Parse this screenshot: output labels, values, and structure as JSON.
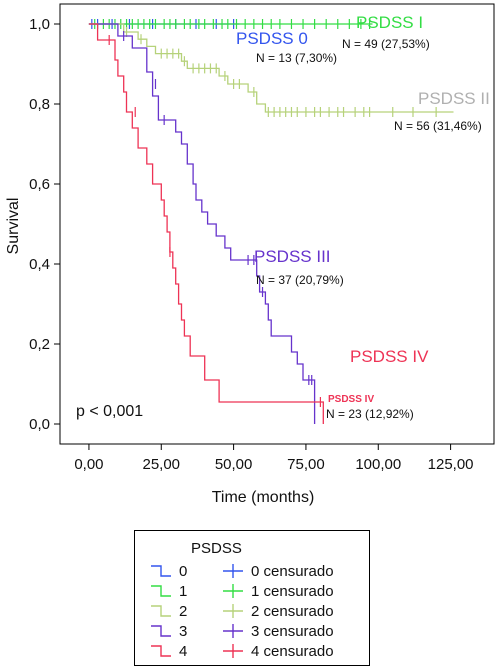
{
  "chart_data": {
    "type": "line",
    "xlabel": "Time (months)",
    "ylabel": "Survival",
    "xlim": [
      -10,
      140
    ],
    "ylim": [
      -0.05,
      1.05
    ],
    "xticks": [
      0,
      25,
      50,
      75,
      100,
      125
    ],
    "xtick_labels": [
      "0,00",
      "25,00",
      "50,00",
      "75,00",
      "100,00",
      "125,00"
    ],
    "yticks": [
      0,
      0.2,
      0.4,
      0.6,
      0.8,
      1.0
    ],
    "ytick_labels": [
      "0,0",
      "0,2",
      "0,4",
      "0,6",
      "0,8",
      "1,0"
    ],
    "p_value_text": "p < 0,001",
    "series": [
      {
        "name": "PSDSS 0",
        "color": "#3355ee",
        "steps": [
          [
            0,
            1.0
          ],
          [
            52,
            1.0
          ]
        ],
        "censored": [
          [
            1,
            1.0
          ],
          [
            3,
            1.0
          ],
          [
            8,
            1.0
          ],
          [
            14,
            1.0
          ],
          [
            22,
            1.0
          ],
          [
            30,
            1.0
          ],
          [
            37,
            1.0
          ],
          [
            44,
            1.0
          ],
          [
            50,
            1.0
          ]
        ]
      },
      {
        "name": "PSDSS I",
        "color": "#33dd44",
        "steps": [
          [
            0,
            1.0
          ],
          [
            98,
            1.0
          ]
        ],
        "censored": [
          [
            2,
            1.0
          ],
          [
            5,
            1.0
          ],
          [
            7,
            1.0
          ],
          [
            9,
            1.0
          ],
          [
            11,
            1.0
          ],
          [
            13,
            1.0
          ],
          [
            15,
            1.0
          ],
          [
            17,
            1.0
          ],
          [
            19,
            1.0
          ],
          [
            21,
            1.0
          ],
          [
            23,
            1.0
          ],
          [
            26,
            1.0
          ],
          [
            28,
            1.0
          ],
          [
            30,
            1.0
          ],
          [
            33,
            1.0
          ],
          [
            35,
            1.0
          ],
          [
            38,
            1.0
          ],
          [
            40,
            1.0
          ],
          [
            43,
            1.0
          ],
          [
            46,
            1.0
          ],
          [
            48,
            1.0
          ],
          [
            51,
            1.0
          ],
          [
            54,
            1.0
          ],
          [
            57,
            1.0
          ],
          [
            60,
            1.0
          ],
          [
            63,
            1.0
          ],
          [
            66,
            1.0
          ],
          [
            70,
            1.0
          ],
          [
            74,
            1.0
          ],
          [
            78,
            1.0
          ],
          [
            82,
            1.0
          ],
          [
            86,
            1.0
          ],
          [
            90,
            1.0
          ],
          [
            94,
            1.0
          ],
          [
            97,
            1.0
          ]
        ]
      },
      {
        "name": "PSDSS II",
        "color": "#b6d27a",
        "steps": [
          [
            0,
            1.0
          ],
          [
            12,
            1.0
          ],
          [
            12,
            0.98
          ],
          [
            17,
            0.98
          ],
          [
            17,
            0.962
          ],
          [
            20,
            0.962
          ],
          [
            20,
            0.944
          ],
          [
            23,
            0.944
          ],
          [
            23,
            0.926
          ],
          [
            32,
            0.926
          ],
          [
            32,
            0.907
          ],
          [
            34,
            0.907
          ],
          [
            34,
            0.889
          ],
          [
            45,
            0.889
          ],
          [
            45,
            0.87
          ],
          [
            48,
            0.87
          ],
          [
            48,
            0.85
          ],
          [
            55,
            0.85
          ],
          [
            55,
            0.83
          ],
          [
            58,
            0.83
          ],
          [
            58,
            0.8
          ],
          [
            61,
            0.8
          ],
          [
            61,
            0.78
          ],
          [
            126,
            0.78
          ]
        ],
        "censored": [
          [
            13,
            0.98
          ],
          [
            18,
            0.962
          ],
          [
            25,
            0.926
          ],
          [
            27,
            0.926
          ],
          [
            29,
            0.926
          ],
          [
            31,
            0.926
          ],
          [
            33,
            0.907
          ],
          [
            36,
            0.889
          ],
          [
            38,
            0.889
          ],
          [
            40,
            0.889
          ],
          [
            42,
            0.889
          ],
          [
            44,
            0.889
          ],
          [
            47,
            0.87
          ],
          [
            50,
            0.85
          ],
          [
            52,
            0.85
          ],
          [
            57,
            0.83
          ],
          [
            62,
            0.78
          ],
          [
            64,
            0.78
          ],
          [
            66,
            0.78
          ],
          [
            68,
            0.78
          ],
          [
            70,
            0.78
          ],
          [
            72,
            0.78
          ],
          [
            75,
            0.78
          ],
          [
            78,
            0.78
          ],
          [
            80,
            0.78
          ],
          [
            83,
            0.78
          ],
          [
            86,
            0.78
          ],
          [
            88,
            0.78
          ],
          [
            92,
            0.78
          ],
          [
            95,
            0.78
          ],
          [
            97,
            0.78
          ],
          [
            105,
            0.78
          ],
          [
            112,
            0.78
          ],
          [
            120,
            0.78
          ]
        ]
      },
      {
        "name": "PSDSS III",
        "color": "#6633cc",
        "steps": [
          [
            0,
            1.0
          ],
          [
            10,
            1.0
          ],
          [
            10,
            0.97
          ],
          [
            15,
            0.97
          ],
          [
            15,
            0.94
          ],
          [
            20,
            0.94
          ],
          [
            20,
            0.88
          ],
          [
            22,
            0.88
          ],
          [
            22,
            0.82
          ],
          [
            24,
            0.82
          ],
          [
            24,
            0.76
          ],
          [
            30,
            0.76
          ],
          [
            30,
            0.73
          ],
          [
            32,
            0.73
          ],
          [
            32,
            0.7
          ],
          [
            34,
            0.7
          ],
          [
            34,
            0.65
          ],
          [
            36,
            0.65
          ],
          [
            36,
            0.6
          ],
          [
            37,
            0.6
          ],
          [
            37,
            0.56
          ],
          [
            39,
            0.56
          ],
          [
            39,
            0.53
          ],
          [
            41,
            0.53
          ],
          [
            41,
            0.5
          ],
          [
            44,
            0.5
          ],
          [
            44,
            0.47
          ],
          [
            47,
            0.47
          ],
          [
            47,
            0.44
          ],
          [
            49,
            0.44
          ],
          [
            49,
            0.41
          ],
          [
            58,
            0.41
          ],
          [
            58,
            0.37
          ],
          [
            59,
            0.37
          ],
          [
            59,
            0.33
          ],
          [
            61,
            0.33
          ],
          [
            61,
            0.3
          ],
          [
            62,
            0.3
          ],
          [
            62,
            0.26
          ],
          [
            63,
            0.26
          ],
          [
            63,
            0.22
          ],
          [
            70,
            0.22
          ],
          [
            70,
            0.18
          ],
          [
            72,
            0.18
          ],
          [
            72,
            0.15
          ],
          [
            74,
            0.15
          ],
          [
            74,
            0.11
          ],
          [
            78,
            0.11
          ],
          [
            78,
            0.0
          ]
        ],
        "censored": [
          [
            12,
            0.97
          ],
          [
            23,
            0.85
          ],
          [
            26,
            0.76
          ],
          [
            55,
            0.41
          ],
          [
            57,
            0.41
          ],
          [
            60,
            0.33
          ],
          [
            76,
            0.11
          ],
          [
            77,
            0.11
          ]
        ]
      },
      {
        "name": "PSDSS IV",
        "color": "#ee3355",
        "steps": [
          [
            0,
            1.0
          ],
          [
            3,
            1.0
          ],
          [
            3,
            0.96
          ],
          [
            9,
            0.96
          ],
          [
            9,
            0.91
          ],
          [
            10,
            0.91
          ],
          [
            10,
            0.87
          ],
          [
            12,
            0.87
          ],
          [
            12,
            0.83
          ],
          [
            13,
            0.83
          ],
          [
            13,
            0.78
          ],
          [
            15,
            0.78
          ],
          [
            15,
            0.74
          ],
          [
            17,
            0.74
          ],
          [
            17,
            0.69
          ],
          [
            20,
            0.69
          ],
          [
            20,
            0.65
          ],
          [
            22,
            0.65
          ],
          [
            22,
            0.6
          ],
          [
            25,
            0.6
          ],
          [
            25,
            0.56
          ],
          [
            26,
            0.56
          ],
          [
            26,
            0.52
          ],
          [
            27,
            0.52
          ],
          [
            27,
            0.48
          ],
          [
            28,
            0.48
          ],
          [
            28,
            0.43
          ],
          [
            29,
            0.43
          ],
          [
            29,
            0.39
          ],
          [
            30,
            0.39
          ],
          [
            30,
            0.35
          ],
          [
            31,
            0.35
          ],
          [
            31,
            0.3
          ],
          [
            32,
            0.3
          ],
          [
            32,
            0.26
          ],
          [
            33,
            0.26
          ],
          [
            33,
            0.22
          ],
          [
            35,
            0.22
          ],
          [
            35,
            0.17
          ],
          [
            40,
            0.17
          ],
          [
            40,
            0.11
          ],
          [
            45,
            0.11
          ],
          [
            45,
            0.055
          ],
          [
            81,
            0.055
          ],
          [
            81,
            0.0
          ]
        ],
        "censored": [
          [
            7,
            0.96
          ],
          [
            16,
            0.78
          ],
          [
            28,
            0.43
          ],
          [
            80,
            0.055
          ]
        ]
      }
    ],
    "annotations": [
      {
        "text": "PSDSS 0",
        "color": "#3355ee",
        "size": "label"
      },
      {
        "text": "N = 13 (7,30%)",
        "color": "#111111",
        "size": "n"
      },
      {
        "text": "PSDSS I",
        "color": "#33dd44",
        "size": "label"
      },
      {
        "text": "N = 49 (27,53%)",
        "color": "#111111",
        "size": "n"
      },
      {
        "text": "PSDSS II",
        "color": "#b0b0b0",
        "size": "label"
      },
      {
        "text": "N = 56 (31,46%)",
        "color": "#111111",
        "size": "n"
      },
      {
        "text": "PSDSS III",
        "color": "#6633cc",
        "size": "label"
      },
      {
        "text": "N = 37 (20,79%)",
        "color": "#111111",
        "size": "n"
      },
      {
        "text": "PSDSS IV",
        "color": "#ee3355",
        "size": "label"
      },
      {
        "text": "PSDSS IV",
        "color": "#ee3355",
        "size": "small"
      },
      {
        "text": "N = 23 (12,92%)",
        "color": "#111111",
        "size": "n"
      }
    ]
  },
  "legend": {
    "title": "PSDSS",
    "items": [
      {
        "label": "0",
        "color": "#3355ee",
        "kind": "step"
      },
      {
        "label": "1",
        "color": "#33dd44",
        "kind": "step"
      },
      {
        "label": "2",
        "color": "#b6d27a",
        "kind": "step"
      },
      {
        "label": "3",
        "color": "#6633cc",
        "kind": "step"
      },
      {
        "label": "4",
        "color": "#ee3355",
        "kind": "step"
      },
      {
        "label": "0 censurado",
        "color": "#3355ee",
        "kind": "cross"
      },
      {
        "label": "1 censurado",
        "color": "#33dd44",
        "kind": "cross"
      },
      {
        "label": "2 censurado",
        "color": "#b6d27a",
        "kind": "cross"
      },
      {
        "label": "3 censurado",
        "color": "#6633cc",
        "kind": "cross"
      },
      {
        "label": "4 censurado",
        "color": "#ee3355",
        "kind": "cross"
      }
    ]
  }
}
